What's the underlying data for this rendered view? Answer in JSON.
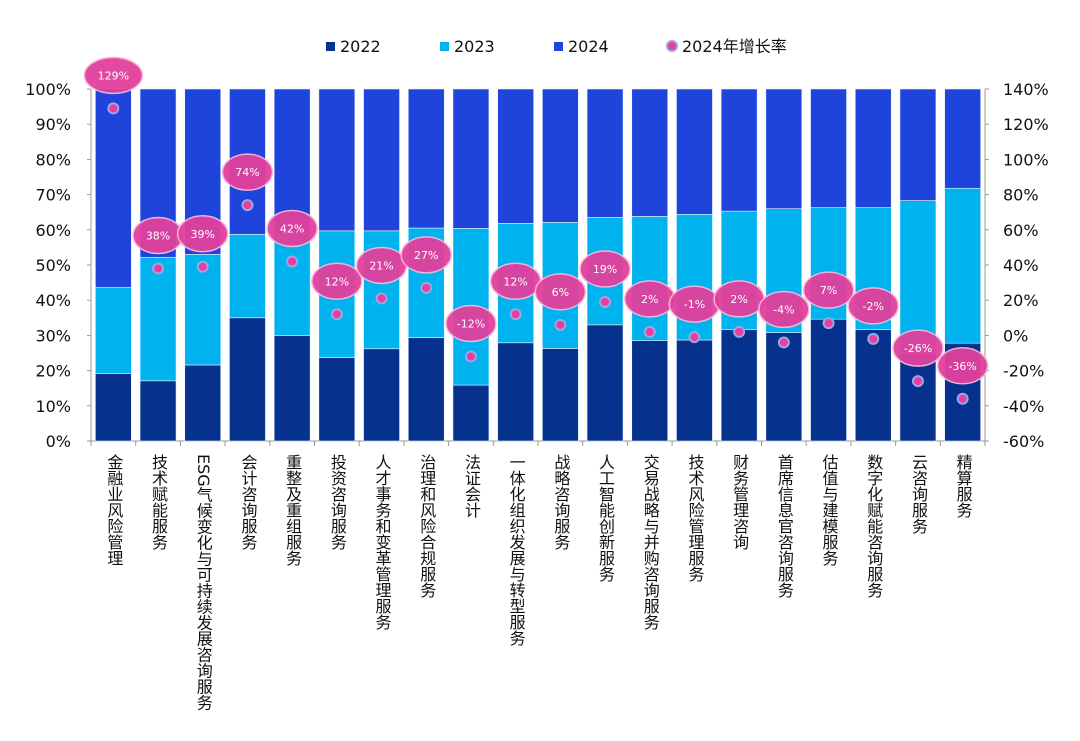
{
  "chart_data": {
    "type": "bar",
    "stacked": true,
    "normalized": true,
    "categories": [
      "金融业风险管理",
      "技术赋能服务",
      "ESG气候变化与可持续发展咨询服务",
      "会计咨询服务",
      "重整及重组服务",
      "投资咨询服务",
      "人才事务和变革管理服务",
      "治理和风险合规服务",
      "法证会计",
      "一体化组织发展与转型服务",
      "战略咨询服务",
      "人工智能创新服务",
      "交易战略与并购咨询服务",
      "技术风险管理服务",
      "财务管理咨询",
      "首席信息官咨询服务",
      "估值与建模服务",
      "数字化赋能咨询服务",
      "云咨询服务",
      "精算服务"
    ],
    "series": [
      {
        "name": "2022",
        "color": "#06318c",
        "values": [
          19.2,
          17.1,
          21.6,
          35.0,
          30.0,
          23.7,
          26.2,
          29.4,
          15.9,
          27.9,
          26.3,
          33.0,
          28.5,
          28.7,
          31.7,
          30.8,
          34.6,
          31.7,
          25.0,
          27.8
        ]
      },
      {
        "name": "2023",
        "color": "#00b2ee",
        "values": [
          24.4,
          35.1,
          31.4,
          23.7,
          29.0,
          36.0,
          33.5,
          31.1,
          44.5,
          33.9,
          35.8,
          30.5,
          35.3,
          35.7,
          33.6,
          35.2,
          31.7,
          34.6,
          43.3,
          44.0
        ]
      },
      {
        "name": "2024",
        "color": "#1e44dc",
        "values": [
          56.4,
          47.8,
          47.0,
          41.3,
          41.0,
          40.3,
          40.3,
          39.5,
          39.6,
          38.2,
          37.9,
          36.5,
          36.2,
          35.6,
          34.7,
          34.0,
          33.7,
          33.7,
          31.7,
          28.2
        ]
      }
    ],
    "line_series": {
      "name": "2024年增长率",
      "axis": "right",
      "color": "#e83e9c",
      "values": [
        129,
        38,
        39,
        74,
        42,
        12,
        21,
        27,
        -12,
        12,
        6,
        19,
        2,
        -1,
        2,
        -4,
        7,
        -2,
        -26,
        -36
      ],
      "labels": [
        "129%",
        "38%",
        "39%",
        "74%",
        "42%",
        "12%",
        "21%",
        "27%",
        "-12%",
        "12%",
        "6%",
        "19%",
        "2%",
        "-1%",
        "2%",
        "-4%",
        "7%",
        "-2%",
        "-26%",
        "-36%"
      ]
    },
    "y_left": {
      "range": [
        0,
        100
      ],
      "ticks": [
        "0%",
        "10%",
        "20%",
        "30%",
        "40%",
        "50%",
        "60%",
        "70%",
        "80%",
        "90%",
        "100%"
      ]
    },
    "y_right": {
      "range": [
        -60,
        140
      ],
      "ticks": [
        "-60%",
        "-40%",
        "-20%",
        "0%",
        "20%",
        "40%",
        "60%",
        "80%",
        "100%",
        "120%",
        "140%"
      ]
    },
    "legend": {
      "placement": "top",
      "items": [
        "2022",
        "2023",
        "2024",
        "2024年增长率"
      ]
    },
    "grid": false
  }
}
